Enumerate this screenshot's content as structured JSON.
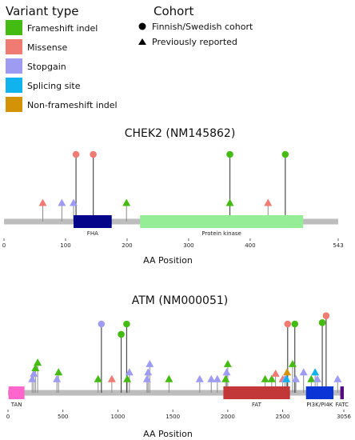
{
  "legend": {
    "variant_title": "Variant type",
    "variant_types": [
      {
        "key": "frameshift",
        "label": "Frameshift indel",
        "color": "#44bb11"
      },
      {
        "key": "missense",
        "label": "Missense",
        "color": "#f07b72"
      },
      {
        "key": "stopgain",
        "label": "Stopgain",
        "color": "#9e9cf2"
      },
      {
        "key": "splicing",
        "label": "Splicing site",
        "color": "#10b3ee"
      },
      {
        "key": "nonframeshift",
        "label": "Non-frameshift indel",
        "color": "#d49206"
      }
    ],
    "cohort_title": "Cohort",
    "cohort_items": [
      {
        "shape": "circle",
        "label": "Finnish/Swedish cohort"
      },
      {
        "shape": "triangle",
        "label": "Previously reported"
      }
    ]
  },
  "chart_data": [
    {
      "type": "lollipop",
      "title": "CHEK2 (NM145862)",
      "xlabel": "AA Position",
      "length": 543,
      "xticks": [
        0,
        100,
        200,
        300,
        400,
        543
      ],
      "domains": [
        {
          "name": "FHA",
          "start": 113,
          "end": 175,
          "color": "#05058a",
          "label_color": "#222222"
        },
        {
          "name": "Protein kinase",
          "start": 221,
          "end": 486,
          "color": "#95ee95",
          "label_color": "#222222"
        }
      ],
      "circles": [
        {
          "pos": 117,
          "type": "missense",
          "height": 1.0
        },
        {
          "pos": 145,
          "type": "missense",
          "height": 1.0
        },
        {
          "pos": 367,
          "type": "frameshift",
          "height": 1.0
        },
        {
          "pos": 457,
          "type": "frameshift",
          "height": 1.0
        }
      ],
      "triangles": [
        {
          "pos": 63,
          "type": "missense",
          "height": 0.28
        },
        {
          "pos": 94,
          "type": "stopgain",
          "height": 0.28
        },
        {
          "pos": 113,
          "type": "stopgain",
          "height": 0.28
        },
        {
          "pos": 199,
          "type": "frameshift",
          "height": 0.28
        },
        {
          "pos": 367,
          "type": "frameshift",
          "height": 0.28
        },
        {
          "pos": 429,
          "type": "missense",
          "height": 0.28
        }
      ]
    },
    {
      "type": "lollipop",
      "title": "ATM (NM000051)",
      "xlabel": "AA Position",
      "length": 3056,
      "xticks": [
        0,
        500,
        1000,
        1500,
        2000,
        2500,
        3056
      ],
      "domains": [
        {
          "name": "TAN",
          "start": 5,
          "end": 150,
          "color": "#ff66cc",
          "label_color": "#222222",
          "label_below": true
        },
        {
          "name": "FAT",
          "start": 1960,
          "end": 2566,
          "color": "#c23838",
          "label_color": "#222222",
          "label_below": true
        },
        {
          "name": "PI3K/PI4K",
          "start": 2712,
          "end": 2962,
          "color": "#0b34d6",
          "label_color": "#222222",
          "label_below": true
        },
        {
          "name": "FATC",
          "start": 3024,
          "end": 3056,
          "color": "#550a82",
          "label_color": "#222222",
          "label_below": true
        }
      ],
      "circles": [
        {
          "pos": 850,
          "type": "stopgain",
          "height": 1.0
        },
        {
          "pos": 1030,
          "type": "frameshift",
          "height": 0.85
        },
        {
          "pos": 1080,
          "type": "frameshift",
          "height": 1.0
        },
        {
          "pos": 2545,
          "type": "missense",
          "height": 1.0
        },
        {
          "pos": 2610,
          "type": "frameshift",
          "height": 1.0
        },
        {
          "pos": 2860,
          "type": "frameshift",
          "height": 1.02
        },
        {
          "pos": 2895,
          "type": "missense",
          "height": 1.12
        }
      ],
      "triangles": [
        {
          "pos": 220,
          "type": "stopgain",
          "height": 0.2
        },
        {
          "pos": 235,
          "type": "stopgain",
          "height": 0.28
        },
        {
          "pos": 250,
          "type": "frameshift",
          "height": 0.36
        },
        {
          "pos": 270,
          "type": "frameshift",
          "height": 0.44
        },
        {
          "pos": 445,
          "type": "stopgain",
          "height": 0.2
        },
        {
          "pos": 460,
          "type": "frameshift",
          "height": 0.3
        },
        {
          "pos": 820,
          "type": "frameshift",
          "height": 0.2
        },
        {
          "pos": 945,
          "type": "missense",
          "height": 0.2
        },
        {
          "pos": 1085,
          "type": "frameshift",
          "height": 0.2
        },
        {
          "pos": 1105,
          "type": "stopgain",
          "height": 0.3
        },
        {
          "pos": 1265,
          "type": "stopgain",
          "height": 0.2
        },
        {
          "pos": 1275,
          "type": "stopgain",
          "height": 0.3
        },
        {
          "pos": 1290,
          "type": "stopgain",
          "height": 0.42
        },
        {
          "pos": 1465,
          "type": "frameshift",
          "height": 0.2
        },
        {
          "pos": 1745,
          "type": "stopgain",
          "height": 0.2
        },
        {
          "pos": 1850,
          "type": "stopgain",
          "height": 0.2
        },
        {
          "pos": 1905,
          "type": "stopgain",
          "height": 0.2
        },
        {
          "pos": 1980,
          "type": "frameshift",
          "height": 0.2
        },
        {
          "pos": 1990,
          "type": "stopgain",
          "height": 0.3
        },
        {
          "pos": 2000,
          "type": "frameshift",
          "height": 0.42
        },
        {
          "pos": 2340,
          "type": "frameshift",
          "height": 0.2
        },
        {
          "pos": 2400,
          "type": "frameshift",
          "height": 0.2
        },
        {
          "pos": 2435,
          "type": "missense",
          "height": 0.28
        },
        {
          "pos": 2500,
          "type": "missense",
          "height": 0.2
        },
        {
          "pos": 2520,
          "type": "stopgain",
          "height": 0.2
        },
        {
          "pos": 2535,
          "type": "splicing",
          "height": 0.2
        },
        {
          "pos": 2540,
          "type": "nonframeshift",
          "height": 0.3
        },
        {
          "pos": 2590,
          "type": "frameshift",
          "height": 0.42
        },
        {
          "pos": 2620,
          "type": "stopgain",
          "height": 0.2
        },
        {
          "pos": 2690,
          "type": "stopgain",
          "height": 0.3
        },
        {
          "pos": 2760,
          "type": "frameshift",
          "height": 0.2
        },
        {
          "pos": 2795,
          "type": "splicing",
          "height": 0.3
        },
        {
          "pos": 2815,
          "type": "stopgain",
          "height": 0.2
        },
        {
          "pos": 3000,
          "type": "stopgain",
          "height": 0.2
        }
      ]
    }
  ]
}
